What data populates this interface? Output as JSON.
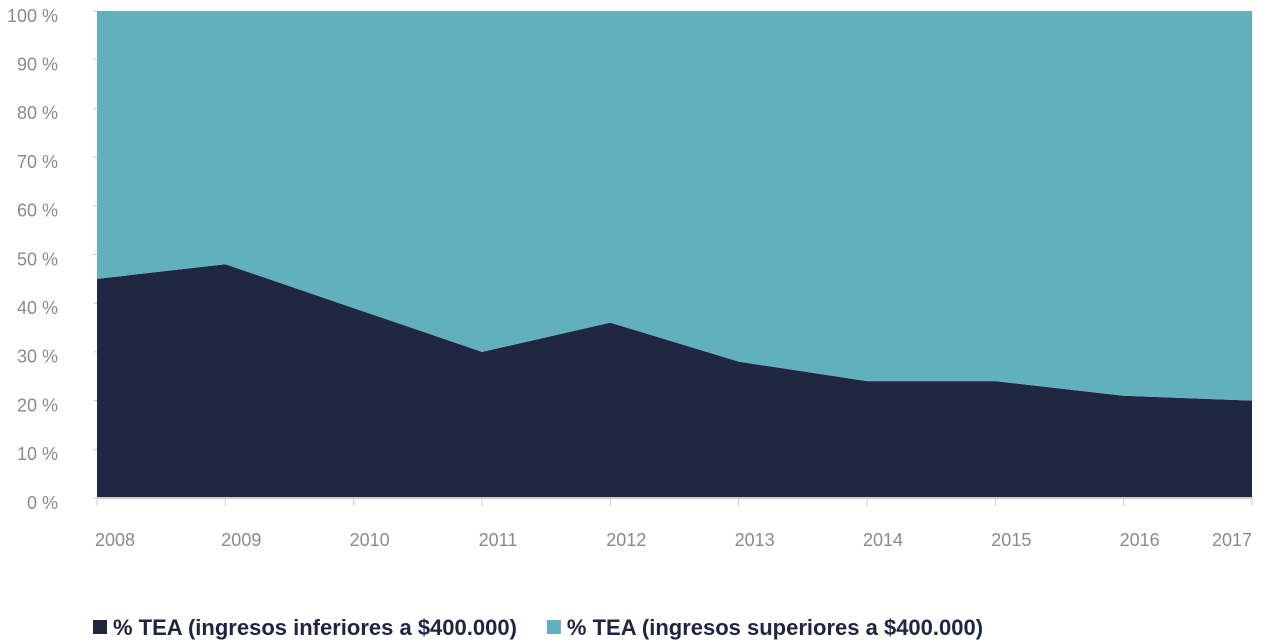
{
  "chart_data": {
    "type": "area",
    "stacked": true,
    "categories": [
      "2008",
      "2009",
      "2010",
      "2011",
      "2012",
      "2013",
      "2014",
      "2015",
      "2016",
      "2017"
    ],
    "series": [
      {
        "name": "% TEA (ingresos inferiores a $400.000)",
        "color": "#1f2743",
        "values": [
          45,
          48,
          39,
          30,
          36,
          28,
          24,
          24,
          21,
          20
        ]
      },
      {
        "name": "% TEA (ingresos superiores a $400.000)",
        "color": "#62b0bc",
        "values": [
          55,
          52,
          61,
          70,
          64,
          72,
          76,
          76,
          79,
          80
        ]
      }
    ],
    "ylim": [
      0,
      100
    ],
    "yticks": [
      {
        "value": 0,
        "label": "0 %"
      },
      {
        "value": 10,
        "label": "10 %"
      },
      {
        "value": 20,
        "label": "20 %"
      },
      {
        "value": 30,
        "label": "30 %"
      },
      {
        "value": 40,
        "label": "40 %"
      },
      {
        "value": 50,
        "label": "50 %"
      },
      {
        "value": 60,
        "label": "60 %"
      },
      {
        "value": 70,
        "label": "70 %"
      },
      {
        "value": 80,
        "label": "80 %"
      },
      {
        "value": 90,
        "label": "90 %"
      },
      {
        "value": 100,
        "label": "100 %"
      }
    ],
    "legend": "bottom"
  }
}
